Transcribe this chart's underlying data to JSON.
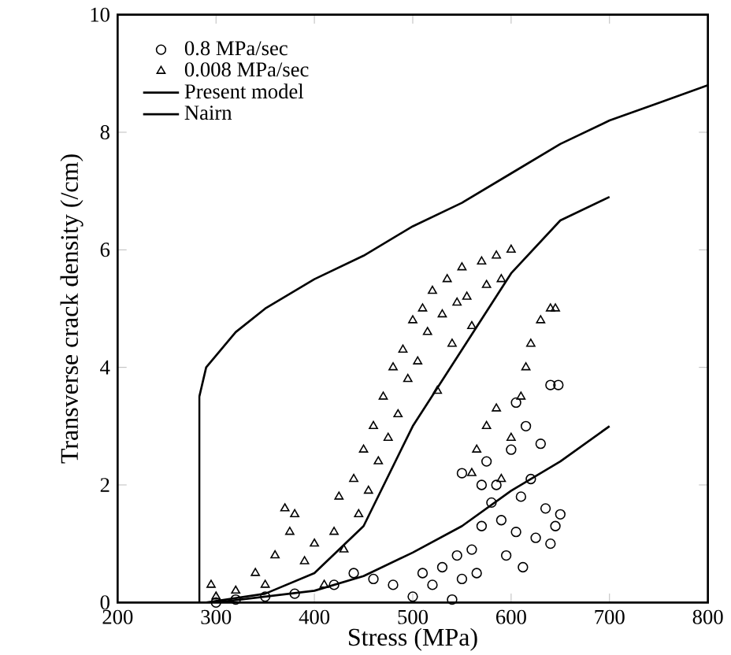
{
  "chart_data": {
    "type": "scatter",
    "xlabel": "Stress  (MPa)",
    "ylabel": "Transverse crack density  (/cm)",
    "xlim": [
      200,
      800
    ],
    "ylim": [
      0,
      10
    ],
    "xticks": [
      200,
      300,
      400,
      500,
      600,
      700,
      800
    ],
    "yticks": [
      0,
      2,
      4,
      6,
      8,
      10
    ],
    "grid": false,
    "legend": "top left",
    "series": [
      {
        "name": "0.8    MPa/sec",
        "marker": "circle",
        "color": "#000000",
        "x": [
          300,
          320,
          350,
          380,
          420,
          440,
          460,
          480,
          500,
          510,
          520,
          530,
          540,
          545,
          550,
          560,
          565,
          570,
          575,
          580,
          585,
          590,
          595,
          600,
          605,
          610,
          612,
          615,
          620,
          625,
          630,
          635,
          640,
          645,
          650,
          640,
          648,
          605,
          570,
          550
        ],
        "values": [
          0,
          0.05,
          0.1,
          0.15,
          0.3,
          0.5,
          0.4,
          0.3,
          0.1,
          0.5,
          0.3,
          0.6,
          0.05,
          0.8,
          0.4,
          0.9,
          0.5,
          1.3,
          2.4,
          1.7,
          2.0,
          1.4,
          0.8,
          2.6,
          1.2,
          1.8,
          0.6,
          3.0,
          2.1,
          1.1,
          2.7,
          1.6,
          1.0,
          1.3,
          1.5,
          3.7,
          3.7,
          3.4,
          2.0,
          2.2
        ]
      },
      {
        "name": "0.008 MPa/sec",
        "marker": "triangle",
        "color": "#000000",
        "x": [
          295,
          300,
          320,
          340,
          350,
          360,
          370,
          375,
          380,
          390,
          400,
          410,
          420,
          425,
          430,
          440,
          445,
          450,
          455,
          460,
          465,
          470,
          475,
          480,
          485,
          490,
          495,
          500,
          505,
          510,
          515,
          520,
          525,
          530,
          535,
          540,
          545,
          550,
          555,
          560,
          570,
          575,
          585,
          590,
          600,
          560,
          565,
          575,
          585,
          590,
          600,
          610,
          615,
          620,
          630,
          640,
          645
        ],
        "values": [
          0.3,
          0.1,
          0.2,
          0.5,
          0.3,
          0.8,
          1.6,
          1.2,
          1.5,
          0.7,
          1.0,
          0.3,
          1.2,
          1.8,
          0.9,
          2.1,
          1.5,
          2.6,
          1.9,
          3.0,
          2.4,
          3.5,
          2.8,
          4.0,
          3.2,
          4.3,
          3.8,
          4.8,
          4.1,
          5.0,
          4.6,
          5.3,
          3.6,
          4.9,
          5.5,
          4.4,
          5.1,
          5.7,
          5.2,
          4.7,
          5.8,
          5.4,
          5.9,
          5.5,
          6.0,
          2.2,
          2.6,
          3.0,
          3.3,
          2.1,
          2.8,
          3.5,
          4.0,
          4.4,
          4.8,
          5.0,
          5.0
        ]
      },
      {
        "name": "Present model",
        "type": "line",
        "marker": "none",
        "line_style": "solid",
        "color": "#000000",
        "x": [
          290,
          350,
          400,
          450,
          500,
          550,
          600,
          650,
          700
        ],
        "values": [
          0,
          0.15,
          0.5,
          1.3,
          3.0,
          4.3,
          5.6,
          6.5,
          6.9
        ]
      },
      {
        "type": "line",
        "marker": "none",
        "line_style": "solid",
        "color": "#000000",
        "x": [
          300,
          400,
          450,
          500,
          550,
          600,
          650,
          700
        ],
        "values": [
          0,
          0.2,
          0.45,
          0.85,
          1.3,
          1.9,
          2.4,
          3.0
        ]
      },
      {
        "name": "Nairn",
        "type": "line",
        "marker": "none",
        "line_style": "solid",
        "color": "#000000",
        "x": [
          283,
          283,
          290,
          320,
          350,
          400,
          450,
          500,
          550,
          600,
          650,
          700,
          750,
          800
        ],
        "values": [
          0,
          3.5,
          4.0,
          4.6,
          5.0,
          5.5,
          5.9,
          6.4,
          6.8,
          7.3,
          7.8,
          8.2,
          8.5,
          8.8
        ]
      }
    ]
  }
}
